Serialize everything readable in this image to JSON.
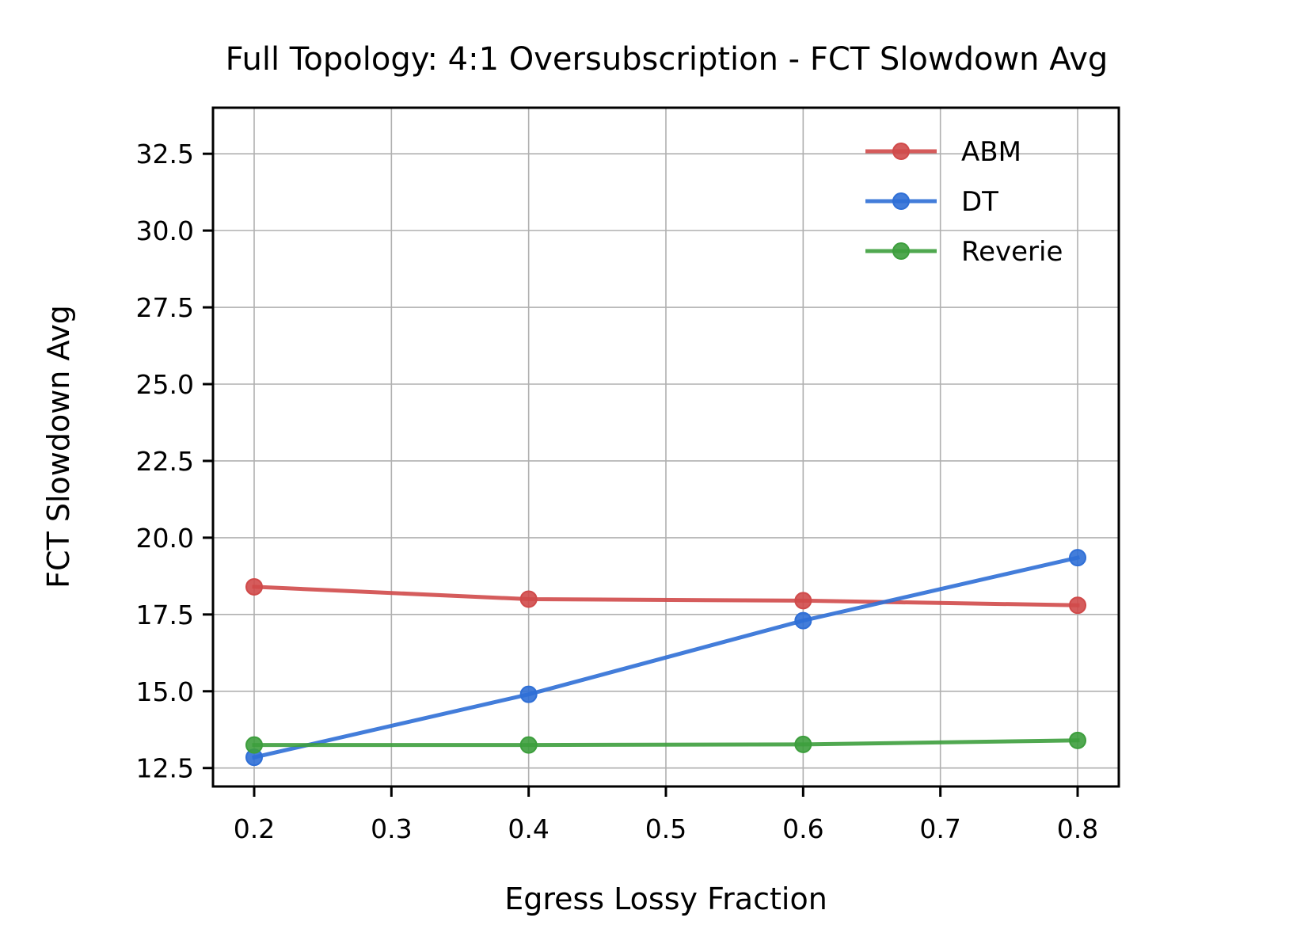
{
  "chart_data": {
    "type": "line",
    "title": "Full Topology: 4:1 Oversubscription - FCT Slowdown Avg",
    "xlabel": "Egress Lossy Fraction",
    "ylabel": "FCT Slowdown Avg",
    "xlim": [
      0.17,
      0.83
    ],
    "ylim": [
      11.9,
      34.0
    ],
    "xticks": [
      0.2,
      0.3,
      0.4,
      0.5,
      0.6,
      0.7,
      0.8
    ],
    "xtick_labels": [
      "0.2",
      "0.3",
      "0.4",
      "0.5",
      "0.6",
      "0.7",
      "0.8"
    ],
    "yticks": [
      12.5,
      15.0,
      17.5,
      20.0,
      22.5,
      25.0,
      27.5,
      30.0,
      32.5
    ],
    "ytick_labels": [
      "12.5",
      "15.0",
      "17.5",
      "20.0",
      "22.5",
      "25.0",
      "27.5",
      "30.0",
      "32.5"
    ],
    "grid": true,
    "legend_position": "top-right",
    "x": [
      0.2,
      0.4,
      0.6,
      0.8
    ],
    "series": [
      {
        "name": "ABM",
        "color": "#d04a4a",
        "values": [
          18.4,
          18.0,
          17.95,
          17.8
        ]
      },
      {
        "name": "DT",
        "color": "#2f6fd6",
        "values": [
          12.85,
          14.9,
          17.3,
          19.35
        ]
      },
      {
        "name": "Reverie",
        "color": "#3d9e3d",
        "values": [
          13.25,
          13.25,
          13.27,
          13.4
        ]
      }
    ]
  }
}
